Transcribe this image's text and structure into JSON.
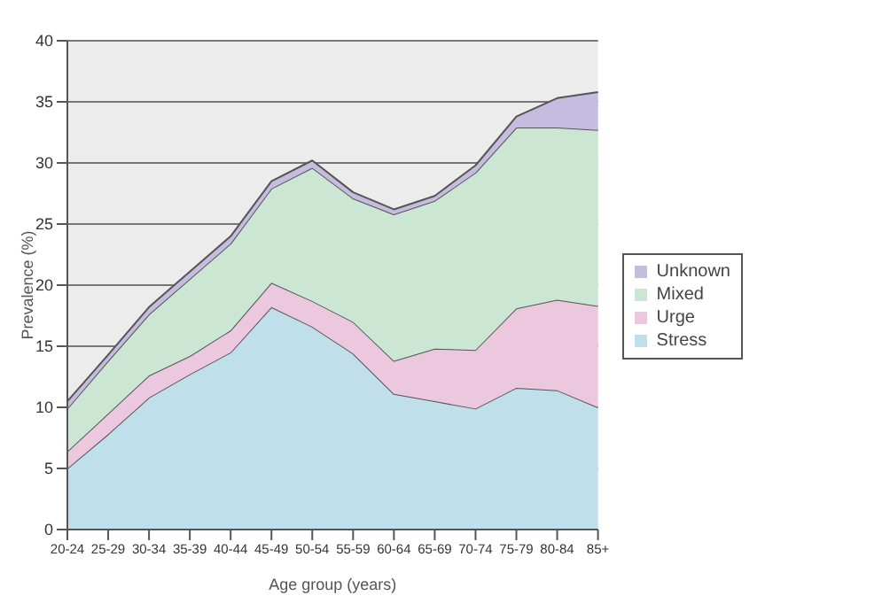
{
  "chart_data": {
    "type": "area",
    "stacked": true,
    "xlabel": "Age group (years)",
    "ylabel": "Prevalence (%)",
    "categories": [
      "20-24",
      "25-29",
      "30-34",
      "35-39",
      "40-44",
      "45-49",
      "50-54",
      "55-59",
      "60-64",
      "65-69",
      "70-74",
      "75-79",
      "80-84",
      "85+"
    ],
    "series": [
      {
        "name": "Stress",
        "color": "#bfe0ea",
        "values": [
          5.0,
          7.8,
          10.8,
          12.7,
          14.5,
          18.2,
          16.6,
          14.4,
          11.1,
          10.5,
          9.9,
          11.6,
          11.4,
          10.0
        ]
      },
      {
        "name": "Urge",
        "color": "#ecc8de",
        "values": [
          1.4,
          1.7,
          1.8,
          1.5,
          1.8,
          2.0,
          2.1,
          2.6,
          2.7,
          4.3,
          4.8,
          6.5,
          7.4,
          8.3
        ]
      },
      {
        "name": "Mixed",
        "color": "#cce6d4",
        "values": [
          3.5,
          4.3,
          5.0,
          6.3,
          7.1,
          7.7,
          10.9,
          10.1,
          12.0,
          12.1,
          14.5,
          14.8,
          14.1,
          14.4
        ]
      },
      {
        "name": "Unknown",
        "color": "#c6bce0",
        "values": [
          0.6,
          0.5,
          0.6,
          0.6,
          0.6,
          0.6,
          0.6,
          0.5,
          0.4,
          0.4,
          0.6,
          0.9,
          2.4,
          3.1
        ]
      }
    ],
    "ylim": [
      0,
      40
    ],
    "yticks": [
      0,
      5,
      10,
      15,
      20,
      25,
      30,
      35,
      40
    ],
    "grid": "y",
    "legend": "right"
  }
}
